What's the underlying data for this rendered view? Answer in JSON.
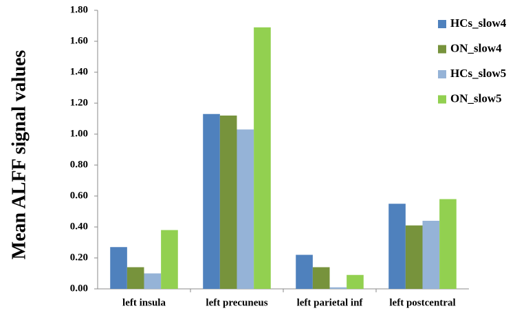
{
  "chart_data": {
    "type": "bar",
    "y_label": "Mean ALFF signal values",
    "categories": [
      "left insula",
      "left precuneus",
      "left parietal inf",
      "left postcentral"
    ],
    "series": [
      {
        "name": "HCs_slow4",
        "color": "#4f81bd",
        "values": [
          0.27,
          1.13,
          0.22,
          0.55
        ]
      },
      {
        "name": "ON_slow4",
        "color": "#77933c",
        "values": [
          0.14,
          1.12,
          0.14,
          0.41
        ]
      },
      {
        "name": "HCs_slow5",
        "color": "#95b3d7",
        "values": [
          0.1,
          1.03,
          0.01,
          0.44
        ]
      },
      {
        "name": "ON_slow5",
        "color": "#92d050",
        "values": [
          0.38,
          1.69,
          0.09,
          0.58
        ]
      }
    ],
    "ylim": [
      0,
      1.8
    ],
    "yticks": [
      {
        "value": 0,
        "label": "0.00"
      },
      {
        "value": 0.2,
        "label": "0.20"
      },
      {
        "value": 0.4,
        "label": "0.40"
      },
      {
        "value": 0.6,
        "label": "0.60"
      },
      {
        "value": 0.8,
        "label": "0.80"
      },
      {
        "value": 1.0,
        "label": "1.00"
      },
      {
        "value": 1.2,
        "label": "1.20"
      },
      {
        "value": 1.4,
        "label": "1.40"
      },
      {
        "value": 1.6,
        "label": "1.60"
      },
      {
        "value": 1.8,
        "label": "1.80"
      }
    ],
    "grid": false,
    "legend": "top-right"
  }
}
